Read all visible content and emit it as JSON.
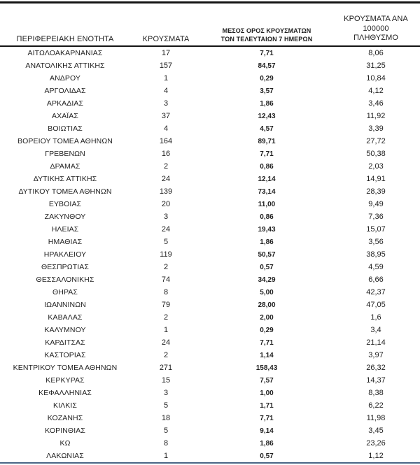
{
  "colors": {
    "text": "#1f1f1f",
    "rule_dark": "#141414",
    "rule_bottom": "#4a6585"
  },
  "table": {
    "columns": {
      "region": {
        "label": "ΠΕΡΙΦΕΡΕΙΑΚΗ ΕΝΟΤΗΤΑ"
      },
      "cases": {
        "label": "ΚΡΟΥΣΜΑΤΑ"
      },
      "avg7": {
        "label_line1": "ΜΕΣΟΣ ΟΡΟΣ ΚΡΟΥΣΜΑΤΩΝ",
        "label_line2": "ΤΩΝ ΤΕΛΕΥΤΑΙΩΝ 7 ΗΜΕΡΩΝ"
      },
      "per100k": {
        "label_line1": "ΚΡΟΥΣΜΑΤΑ ΑΝΑ 100000",
        "label_line2": "ΠΛΗΘΥΣΜΟ"
      }
    },
    "rows": [
      {
        "region": "ΑΙΤΩΛΟΑΚΑΡΝΑΝΙΑΣ",
        "cases": "17",
        "avg7": "7,71",
        "per100k": "8,06"
      },
      {
        "region": "ΑΝΑΤΟΛΙΚΗΣ ΑΤΤΙΚΗΣ",
        "cases": "157",
        "avg7": "84,57",
        "per100k": "31,25"
      },
      {
        "region": "ΑΝΔΡΟΥ",
        "cases": "1",
        "avg7": "0,29",
        "per100k": "10,84"
      },
      {
        "region": "ΑΡΓΟΛΙΔΑΣ",
        "cases": "4",
        "avg7": "3,57",
        "per100k": "4,12"
      },
      {
        "region": "ΑΡΚΑΔΙΑΣ",
        "cases": "3",
        "avg7": "1,86",
        "per100k": "3,46"
      },
      {
        "region": "ΑΧΑΪΑΣ",
        "cases": "37",
        "avg7": "12,43",
        "per100k": "11,92"
      },
      {
        "region": "ΒΟΙΩΤΙΑΣ",
        "cases": "4",
        "avg7": "4,57",
        "per100k": "3,39"
      },
      {
        "region": "ΒΟΡΕΙΟΥ ΤΟΜΕΑ ΑΘΗΝΩΝ",
        "cases": "164",
        "avg7": "89,71",
        "per100k": "27,72"
      },
      {
        "region": "ΓΡΕΒΕΝΩΝ",
        "cases": "16",
        "avg7": "7,71",
        "per100k": "50,38"
      },
      {
        "region": "ΔΡΑΜΑΣ",
        "cases": "2",
        "avg7": "0,86",
        "per100k": "2,03"
      },
      {
        "region": "ΔΥΤΙΚΗΣ ΑΤΤΙΚΗΣ",
        "cases": "24",
        "avg7": "12,14",
        "per100k": "14,91"
      },
      {
        "region": "ΔΥΤΙΚΟΥ ΤΟΜΕΑ ΑΘΗΝΩΝ",
        "cases": "139",
        "avg7": "73,14",
        "per100k": "28,39"
      },
      {
        "region": "ΕΥΒΟΙΑΣ",
        "cases": "20",
        "avg7": "11,00",
        "per100k": "9,49"
      },
      {
        "region": "ΖΑΚΥΝΘΟΥ",
        "cases": "3",
        "avg7": "0,86",
        "per100k": "7,36"
      },
      {
        "region": "ΗΛΕΙΑΣ",
        "cases": "24",
        "avg7": "19,43",
        "per100k": "15,07"
      },
      {
        "region": "ΗΜΑΘΙΑΣ",
        "cases": "5",
        "avg7": "1,86",
        "per100k": "3,56"
      },
      {
        "region": "ΗΡΑΚΛΕΙΟΥ",
        "cases": "119",
        "avg7": "50,57",
        "per100k": "38,95"
      },
      {
        "region": "ΘΕΣΠΡΩΤΙΑΣ",
        "cases": "2",
        "avg7": "0,57",
        "per100k": "4,59"
      },
      {
        "region": "ΘΕΣΣΑΛΟΝΙΚΗΣ",
        "cases": "74",
        "avg7": "34,29",
        "per100k": "6,66"
      },
      {
        "region": "ΘΗΡΑΣ",
        "cases": "8",
        "avg7": "5,00",
        "per100k": "42,37"
      },
      {
        "region": "ΙΩΑΝΝΙΝΩΝ",
        "cases": "79",
        "avg7": "28,00",
        "per100k": "47,05"
      },
      {
        "region": "ΚΑΒΑΛΑΣ",
        "cases": "2",
        "avg7": "2,00",
        "per100k": "1,6"
      },
      {
        "region": "ΚΑΛΥΜΝΟΥ",
        "cases": "1",
        "avg7": "0,29",
        "per100k": "3,4"
      },
      {
        "region": "ΚΑΡΔΙΤΣΑΣ",
        "cases": "24",
        "avg7": "7,71",
        "per100k": "21,14"
      },
      {
        "region": "ΚΑΣΤΟΡΙΑΣ",
        "cases": "2",
        "avg7": "1,14",
        "per100k": "3,97"
      },
      {
        "region": "ΚΕΝΤΡΙΚΟΥ ΤΟΜΕΑ ΑΘΗΝΩΝ",
        "cases": "271",
        "avg7": "158,43",
        "per100k": "26,32"
      },
      {
        "region": "ΚΕΡΚΥΡΑΣ",
        "cases": "15",
        "avg7": "7,57",
        "per100k": "14,37"
      },
      {
        "region": "ΚΕΦΑΛΛΗΝΙΑΣ",
        "cases": "3",
        "avg7": "1,00",
        "per100k": "8,38"
      },
      {
        "region": "ΚΙΛΚΙΣ",
        "cases": "5",
        "avg7": "1,71",
        "per100k": "6,22"
      },
      {
        "region": "ΚΟΖΑΝΗΣ",
        "cases": "18",
        "avg7": "7,71",
        "per100k": "11,98"
      },
      {
        "region": "ΚΟΡΙΝΘΙΑΣ",
        "cases": "5",
        "avg7": "9,14",
        "per100k": "3,45"
      },
      {
        "region": "ΚΩ",
        "cases": "8",
        "avg7": "1,86",
        "per100k": "23,26"
      },
      {
        "region": "ΛΑΚΩΝΙΑΣ",
        "cases": "1",
        "avg7": "0,57",
        "per100k": "1,12"
      }
    ]
  }
}
